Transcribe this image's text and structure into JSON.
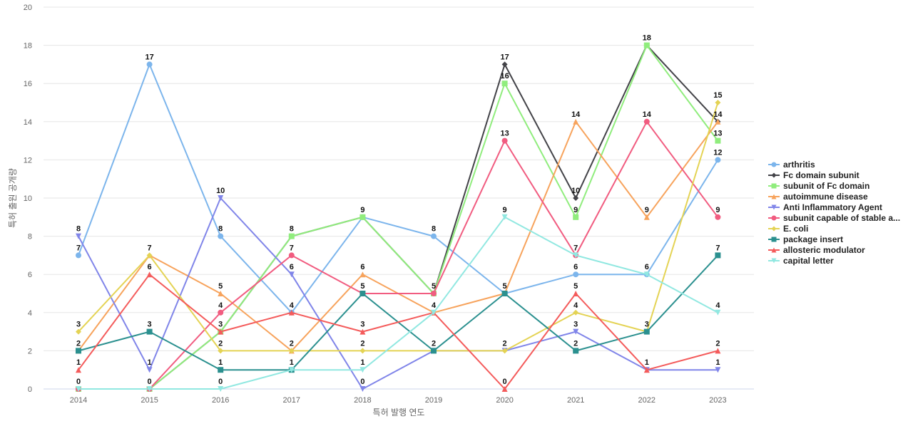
{
  "chart_data": {
    "type": "line",
    "title": "",
    "xlabel": "특허 발행 연도",
    "ylabel": "특허 출원 공개량",
    "ylim": [
      0,
      20
    ],
    "y_ticks": [
      0,
      2,
      4,
      6,
      8,
      10,
      12,
      14,
      16,
      18,
      20
    ],
    "grid": true,
    "legend_position": "right",
    "categories": [
      "2014",
      "2015",
      "2016",
      "2017",
      "2018",
      "2019",
      "2020",
      "2021",
      "2022",
      "2023"
    ],
    "series": [
      {
        "name": "arthritis",
        "color": "#7cb5ec",
        "marker": "circle",
        "values": [
          7,
          17,
          8,
          4,
          9,
          8,
          5,
          6,
          6,
          12
        ]
      },
      {
        "name": "Fc domain subunit",
        "color": "#434348",
        "marker": "diamond",
        "values": [
          0,
          0,
          3,
          8,
          9,
          5,
          17,
          10,
          18,
          14
        ]
      },
      {
        "name": "subunit of Fc domain",
        "color": "#90ed7d",
        "marker": "square",
        "values": [
          0,
          0,
          3,
          8,
          9,
          5,
          16,
          9,
          18,
          13
        ]
      },
      {
        "name": "autoimmune disease",
        "color": "#f7a35c",
        "marker": "triangle",
        "values": [
          2,
          7,
          5,
          2,
          6,
          4,
          5,
          14,
          9,
          14
        ]
      },
      {
        "name": "Anti Inflammatory Agent",
        "color": "#8085e9",
        "marker": "triangle-down",
        "values": [
          8,
          1,
          10,
          6,
          0,
          2,
          2,
          3,
          1,
          1
        ]
      },
      {
        "name": "subunit capable of stable a...",
        "color": "#f15c80",
        "marker": "circle",
        "values": [
          0,
          0,
          4,
          7,
          5,
          5,
          13,
          7,
          14,
          9
        ]
      },
      {
        "name": "E. coli",
        "color": "#e4d354",
        "marker": "diamond",
        "values": [
          3,
          7,
          2,
          2,
          2,
          2,
          2,
          4,
          3,
          15
        ]
      },
      {
        "name": "package insert",
        "color": "#2b908f",
        "marker": "square",
        "values": [
          2,
          3,
          1,
          1,
          5,
          2,
          5,
          2,
          3,
          7
        ]
      },
      {
        "name": "allosteric modulator",
        "color": "#f45b5b",
        "marker": "triangle",
        "values": [
          1,
          6,
          3,
          4,
          3,
          4,
          0,
          5,
          1,
          2
        ]
      },
      {
        "name": "capital letter",
        "color": "#91e8e1",
        "marker": "triangle-down",
        "values": [
          0,
          0,
          0,
          1,
          1,
          4,
          9,
          7,
          6,
          4
        ]
      }
    ],
    "value_labels": [
      [
        {
          "x": "2014",
          "text": "8"
        },
        {
          "x": "2014",
          "text": "7"
        },
        {
          "x": "2014",
          "text": "3"
        },
        {
          "x": "2014",
          "text": "2"
        },
        {
          "x": "2014",
          "text": "1"
        },
        {
          "x": "2014",
          "text": "0"
        }
      ],
      [
        {
          "x": "2015",
          "text": "17"
        },
        {
          "x": "2015",
          "text": "7"
        },
        {
          "x": "2015",
          "text": "6"
        },
        {
          "x": "2015",
          "text": "3"
        },
        {
          "x": "2015",
          "text": "1"
        },
        {
          "x": "2015",
          "text": "0"
        }
      ],
      [
        {
          "x": "2016",
          "text": "10"
        },
        {
          "x": "2016",
          "text": "8"
        },
        {
          "x": "2016",
          "text": "5"
        },
        {
          "x": "2016",
          "text": "4"
        },
        {
          "x": "2016",
          "text": "3"
        },
        {
          "x": "2016",
          "text": "2"
        },
        {
          "x": "2016",
          "text": "1"
        },
        {
          "x": "2016",
          "text": "0"
        }
      ],
      [
        {
          "x": "2017",
          "text": "8"
        },
        {
          "x": "2017",
          "text": "7"
        },
        {
          "x": "2017",
          "text": "6"
        },
        {
          "x": "2017",
          "text": "4"
        },
        {
          "x": "2017",
          "text": "2"
        },
        {
          "x": "2017",
          "text": "1"
        }
      ],
      [
        {
          "x": "2018",
          "text": "9"
        },
        {
          "x": "2018",
          "text": "6"
        },
        {
          "x": "2018",
          "text": "5"
        },
        {
          "x": "2018",
          "text": "3"
        },
        {
          "x": "2018",
          "text": "2"
        },
        {
          "x": "2018",
          "text": "1"
        },
        {
          "x": "2018",
          "text": "0"
        }
      ],
      [
        {
          "x": "2019",
          "text": "8"
        },
        {
          "x": "2019",
          "text": "5"
        },
        {
          "x": "2019",
          "text": "4"
        },
        {
          "x": "2019",
          "text": "2"
        }
      ],
      [
        {
          "x": "2020",
          "text": "17"
        },
        {
          "x": "2020",
          "text": "16"
        },
        {
          "x": "2020",
          "text": "13"
        },
        {
          "x": "2020",
          "text": "9"
        },
        {
          "x": "2020",
          "text": "5"
        },
        {
          "x": "2020",
          "text": "2"
        },
        {
          "x": "2020",
          "text": "0"
        }
      ],
      [
        {
          "x": "2021",
          "text": "14"
        },
        {
          "x": "2021",
          "text": "10"
        },
        {
          "x": "2021",
          "text": "9"
        },
        {
          "x": "2021",
          "text": "7"
        },
        {
          "x": "2021",
          "text": "6"
        },
        {
          "x": "2021",
          "text": "5"
        },
        {
          "x": "2021",
          "text": "4"
        },
        {
          "x": "2021",
          "text": "3"
        },
        {
          "x": "2021",
          "text": "2"
        }
      ],
      [
        {
          "x": "2022",
          "text": "18"
        },
        {
          "x": "2022",
          "text": "14"
        },
        {
          "x": "2022",
          "text": "9"
        },
        {
          "x": "2022",
          "text": "6"
        },
        {
          "x": "2022",
          "text": "3"
        },
        {
          "x": "2022",
          "text": "1"
        }
      ],
      [
        {
          "x": "2023",
          "text": "15"
        },
        {
          "x": "2023",
          "text": "14"
        },
        {
          "x": "2023",
          "text": "13"
        },
        {
          "x": "2023",
          "text": "12"
        },
        {
          "x": "2023",
          "text": "9"
        },
        {
          "x": "2023",
          "text": "7"
        },
        {
          "x": "2023",
          "text": "4"
        },
        {
          "x": "2023",
          "text": "2"
        },
        {
          "x": "2023",
          "text": "1"
        }
      ]
    ]
  }
}
